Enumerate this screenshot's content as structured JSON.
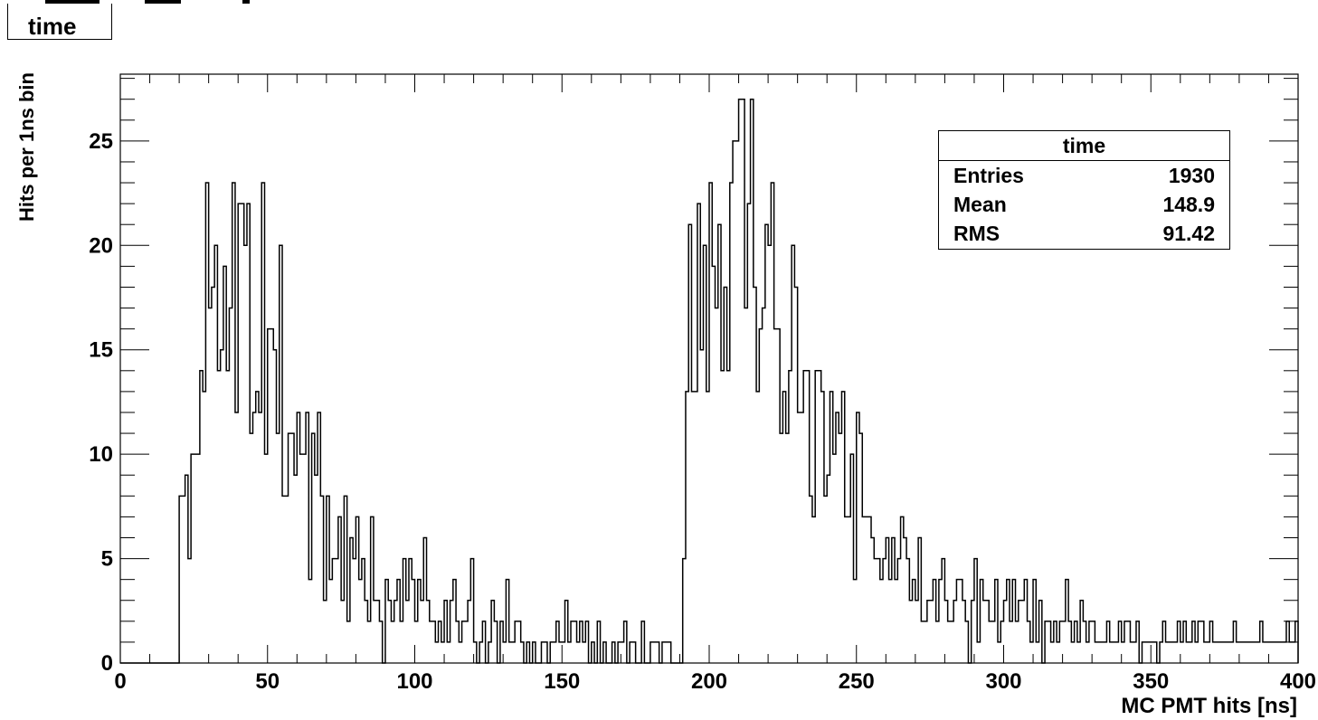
{
  "canvas_title": "time",
  "stats_box": {
    "title": "time",
    "rows": [
      {
        "label": "Entries",
        "value": "1930"
      },
      {
        "label": "Mean",
        "value": "148.9"
      },
      {
        "label": "RMS",
        "value": "91.42"
      }
    ]
  },
  "chart_data": {
    "type": "bar",
    "subtype": "histogram-step",
    "title": "time",
    "xlabel": "MC PMT hits [ns]",
    "ylabel": "Hits per 1ns bin",
    "xlim": [
      0,
      400
    ],
    "ylim": [
      0,
      28.2
    ],
    "bin_width": 1,
    "x_ticks": [
      0,
      50,
      100,
      150,
      200,
      250,
      300,
      350,
      400
    ],
    "y_ticks": [
      0,
      5,
      10,
      15,
      20,
      25
    ],
    "grid": false,
    "legend": "none",
    "line_color": "#000000",
    "values": [
      0,
      0,
      0,
      0,
      0,
      0,
      0,
      0,
      0,
      0,
      0,
      0,
      0,
      0,
      0,
      0,
      0,
      0,
      0,
      0,
      8,
      8,
      9,
      5,
      10,
      10,
      10,
      14,
      13,
      23,
      17,
      18,
      20,
      14,
      15,
      19,
      14,
      17,
      23,
      12,
      22,
      22,
      20,
      22,
      11,
      12,
      13,
      12,
      23,
      10,
      16,
      16,
      15,
      11,
      20,
      8,
      8,
      11,
      11,
      9,
      12,
      10,
      10,
      12,
      4,
      11,
      9,
      12,
      8,
      3,
      8,
      4,
      5,
      5,
      7,
      3,
      8,
      2,
      6,
      5,
      7,
      4,
      5,
      3,
      2,
      7,
      3,
      3,
      2,
      0,
      4,
      3,
      2,
      3,
      4,
      2,
      5,
      3,
      5,
      4,
      2,
      4,
      3,
      6,
      3,
      2,
      2,
      1,
      2,
      1,
      3,
      1,
      3,
      4,
      2,
      1,
      2,
      2,
      3,
      5,
      1,
      0,
      1,
      2,
      0,
      1,
      3,
      2,
      0,
      2,
      1,
      4,
      1,
      1,
      2,
      2,
      1,
      0,
      1,
      0,
      1,
      0,
      0,
      1,
      1,
      0,
      1,
      1,
      2,
      1,
      1,
      3,
      1,
      2,
      2,
      1,
      2,
      1,
      2,
      0,
      1,
      0,
      2,
      0,
      1,
      0,
      0,
      1,
      0,
      1,
      1,
      2,
      0,
      1,
      1,
      0,
      0,
      2,
      0,
      0,
      1,
      1,
      1,
      0,
      1,
      1,
      1,
      0,
      0,
      0,
      0,
      5,
      13,
      21,
      13,
      13,
      22,
      15,
      20,
      13,
      23,
      19,
      17,
      21,
      14,
      18,
      14,
      23,
      25,
      25,
      27,
      27,
      17,
      22,
      27,
      18,
      13,
      16,
      17,
      21,
      20,
      23,
      16,
      16,
      11,
      13,
      11,
      14,
      20,
      18,
      12,
      12,
      14,
      14,
      8,
      7,
      14,
      14,
      13,
      8,
      9,
      13,
      10,
      12,
      11,
      13,
      7,
      7,
      10,
      4,
      12,
      11,
      7,
      7,
      7,
      6,
      5,
      5,
      4,
      5,
      6,
      4,
      6,
      4,
      5,
      7,
      6,
      5,
      3,
      4,
      3,
      6,
      2,
      2,
      3,
      3,
      4,
      2,
      4,
      5,
      3,
      2,
      2,
      3,
      4,
      4,
      3,
      2,
      0,
      3,
      5,
      1,
      4,
      3,
      3,
      2,
      2,
      4,
      1,
      2,
      3,
      4,
      2,
      4,
      2,
      3,
      3,
      4,
      2,
      1,
      4,
      1,
      3,
      0,
      2,
      2,
      1,
      2,
      1,
      2,
      2,
      4,
      2,
      1,
      2,
      1,
      3,
      2,
      1,
      2,
      2,
      1,
      1,
      1,
      1,
      2,
      1,
      1,
      1,
      2,
      1,
      2,
      2,
      1,
      1,
      2,
      0,
      1,
      1,
      1,
      1,
      1,
      0,
      1,
      2,
      1,
      1,
      1,
      1,
      2,
      1,
      2,
      1,
      1,
      2,
      1,
      2,
      2,
      1,
      1,
      2,
      1,
      1,
      1,
      1,
      1,
      1,
      1,
      2,
      1,
      1,
      1,
      1,
      1,
      1,
      1,
      1,
      2,
      1,
      1,
      1,
      1,
      1,
      1,
      1,
      1,
      2,
      1,
      1,
      2
    ]
  }
}
